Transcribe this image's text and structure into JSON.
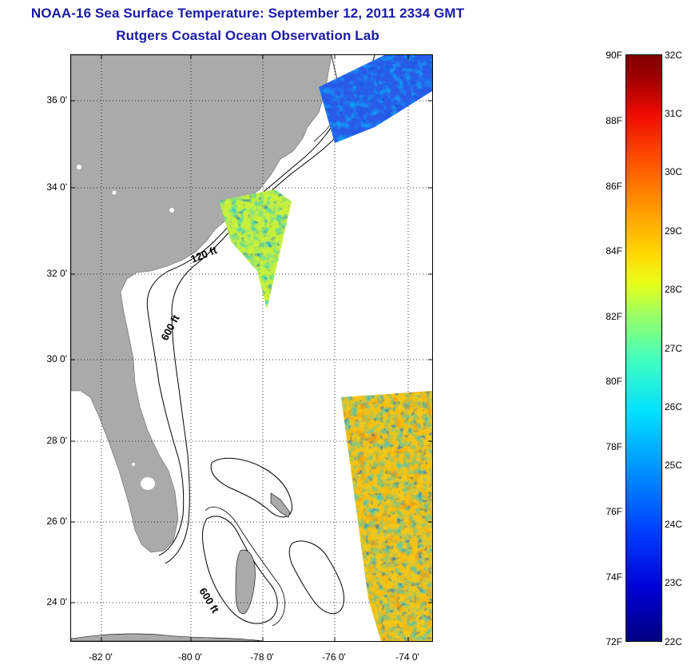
{
  "title": {
    "line1": "NOAA-16 Sea Surface Temperature:  September 12, 2011 2334 GMT",
    "line2": "Rutgers Coastal Ocean Observation Lab"
  },
  "map": {
    "lat_ticks": [
      "36 0'",
      "34 0'",
      "32 0'",
      "30 0'",
      "28 0'",
      "26 0'",
      "24 0'"
    ],
    "lon_ticks": [
      "-82 0'",
      "-80 0'",
      "-78 0'",
      "-76 0'",
      "-74 0'"
    ],
    "contour_labels": {
      "shelf_120": "120 ft",
      "shelf_600": "600 ft",
      "bahamas_600": "600 ft"
    },
    "colors": {
      "land": "#aaaaaa",
      "contour": "#000000",
      "grid": "#000000"
    }
  },
  "colorbar": {
    "fahrenheit_labels": [
      "90F",
      "88F",
      "86F",
      "84F",
      "82F",
      "80F",
      "78F",
      "76F",
      "74F",
      "72F"
    ],
    "celsius_labels": [
      "32C",
      "31C",
      "30C",
      "29C",
      "28C",
      "27C",
      "26C",
      "25C",
      "24C",
      "23C",
      "22C"
    ],
    "range_f": [
      72,
      90
    ],
    "range_c": [
      22,
      32
    ],
    "colormap": "jet"
  }
}
